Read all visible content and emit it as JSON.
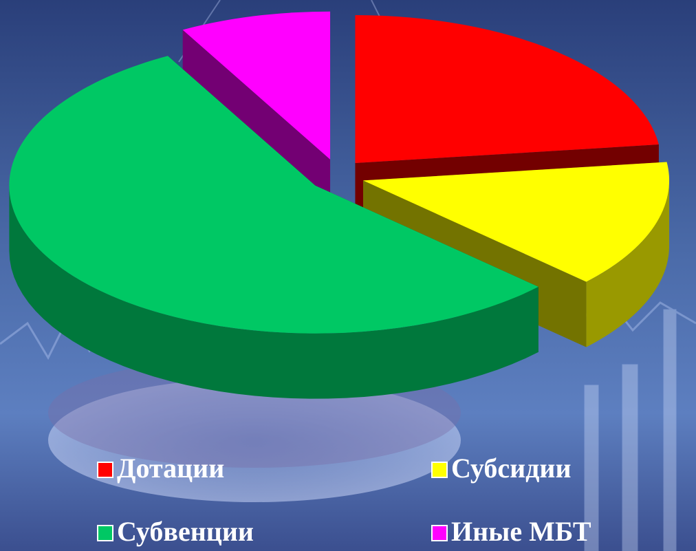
{
  "chart_data": {
    "type": "pie",
    "categories": [
      "Дотации",
      "Субсидии",
      "Субвенции",
      "Иные МБТ"
    ],
    "values": [
      23,
      14,
      55,
      8
    ],
    "colors": [
      "#ff0000",
      "#ffff00",
      "#00c864",
      "#ff00ff"
    ],
    "legend": "bottom"
  }
}
